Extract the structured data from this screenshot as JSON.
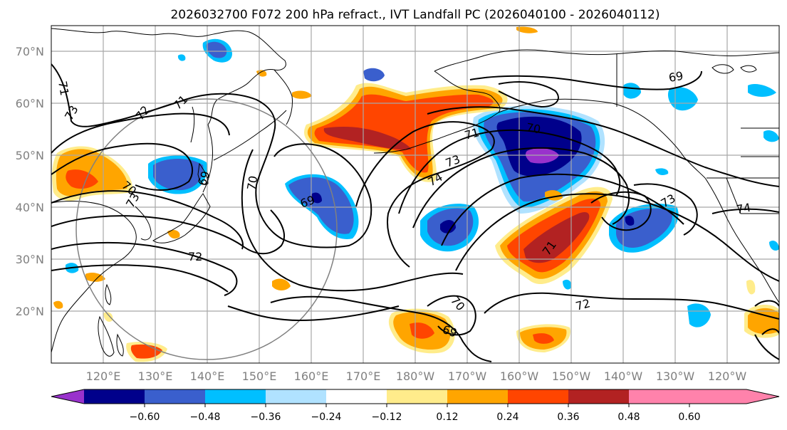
{
  "title": "2026032700 F072 200 hPa refract., IVT Landfall PC (2026040100 - 2026040112)",
  "lat_labels": [
    "70°N",
    "60°N",
    "50°N",
    "40°N",
    "30°N",
    "20°N"
  ],
  "lon_labels": [
    "120°E",
    "130°E",
    "140°E",
    "150°E",
    "160°E",
    "170°E",
    "180°W",
    "170°W",
    "160°W",
    "150°W",
    "140°W",
    "130°W",
    "120°W"
  ],
  "colorbar": {
    "colors": [
      "#9932cc",
      "#00008b",
      "#3a5fcd",
      "#00bfff",
      "#b0e2ff",
      "#ffffff",
      "#ffec8b",
      "#ffa500",
      "#ff4500",
      "#b22222",
      "#ff82ab"
    ],
    "tick_labels": [
      "−0.60",
      "−0.48",
      "−0.36",
      "−0.24",
      "−0.12",
      "0.12",
      "0.24",
      "0.36",
      "0.48",
      "0.60"
    ]
  },
  "contour_labels": [
    "71",
    "71",
    "72",
    "73",
    "70",
    "73",
    "69",
    "72",
    "69",
    "70",
    "71",
    "73",
    "74",
    "71",
    "72",
    "70",
    "69",
    "73",
    "69",
    "74",
    "70"
  ],
  "colors": {
    "gridline": "#a8a8a8",
    "circle": "#808080",
    "axis_label": "#808080"
  }
}
